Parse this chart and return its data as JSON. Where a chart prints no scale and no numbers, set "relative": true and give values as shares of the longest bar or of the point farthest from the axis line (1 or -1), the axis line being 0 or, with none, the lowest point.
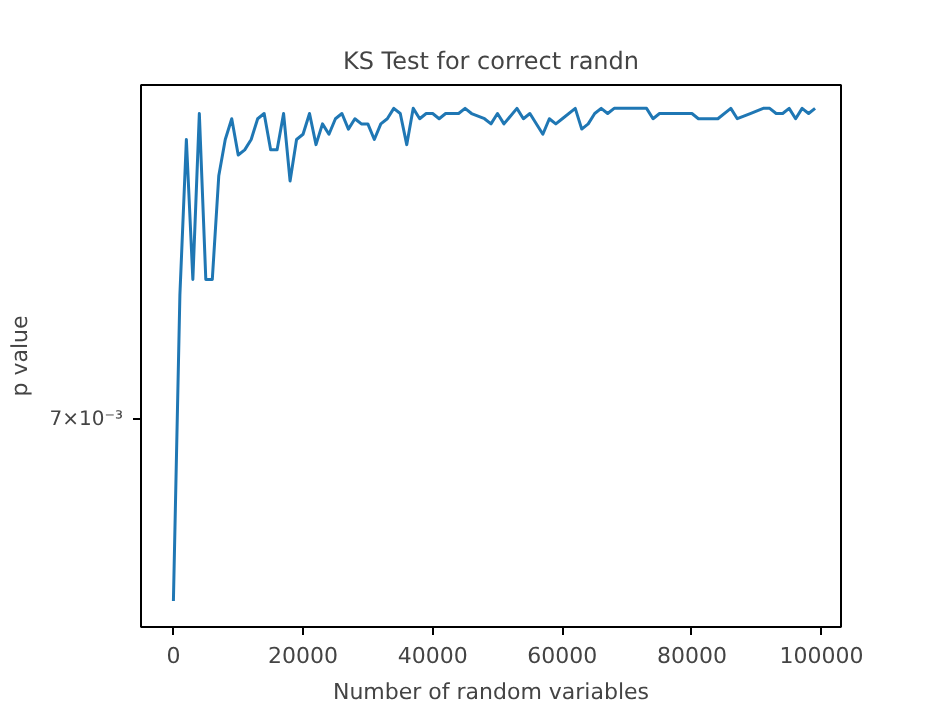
{
  "chart_data": {
    "type": "line",
    "title": "KS Test for correct randn",
    "xlabel": "Number of random variables",
    "ylabel": "p value",
    "relative": true,
    "grid": false,
    "annotations": [
      "7×10⁻³"
    ],
    "xlim": [
      -5000,
      103000
    ],
    "xticks": [
      0,
      20000,
      40000,
      60000,
      80000,
      100000
    ],
    "x": [
      0,
      1000,
      2000,
      3000,
      4000,
      5000,
      6000,
      7000,
      8000,
      9000,
      10000,
      11000,
      12000,
      13000,
      14000,
      15000,
      16000,
      17000,
      18000,
      19000,
      20000,
      21000,
      22000,
      23000,
      24000,
      25000,
      26000,
      27000,
      28000,
      29000,
      30000,
      31000,
      32000,
      33000,
      34000,
      35000,
      36000,
      37000,
      38000,
      39000,
      40000,
      41000,
      42000,
      43000,
      44000,
      45000,
      46000,
      48000,
      49000,
      50000,
      51000,
      53000,
      54000,
      55000,
      57000,
      58000,
      59000,
      60000,
      62000,
      63000,
      64000,
      65000,
      66000,
      67000,
      68000,
      69000,
      71000,
      73000,
      74000,
      75000,
      77000,
      78000,
      80000,
      81000,
      83000,
      84000,
      86000,
      87000,
      89000,
      91000,
      92000,
      93000,
      94000,
      95000,
      96000,
      97000,
      98000,
      99000
    ],
    "series": [
      {
        "color": "#1f77b4",
        "values": [
          0.05,
          0.64,
          0.94,
          0.67,
          0.99,
          0.67,
          0.67,
          0.87,
          0.94,
          0.98,
          0.91,
          0.92,
          0.94,
          0.98,
          0.99,
          0.92,
          0.92,
          0.99,
          0.86,
          0.94,
          0.95,
          0.99,
          0.93,
          0.97,
          0.95,
          0.98,
          0.99,
          0.96,
          0.98,
          0.97,
          0.97,
          0.94,
          0.97,
          0.98,
          1.0,
          0.99,
          0.93,
          1.0,
          0.98,
          0.99,
          0.99,
          0.98,
          0.99,
          0.99,
          0.99,
          1.0,
          0.99,
          0.98,
          0.97,
          0.99,
          0.97,
          1.0,
          0.98,
          0.99,
          0.95,
          0.98,
          0.97,
          0.98,
          1.0,
          0.96,
          0.97,
          0.99,
          1.0,
          0.99,
          1.0,
          1.0,
          1.0,
          1.0,
          0.98,
          0.99,
          0.99,
          0.99,
          0.99,
          0.98,
          0.98,
          0.98,
          1.0,
          0.98,
          0.99,
          1.0,
          1.0,
          0.99,
          0.99,
          1.0,
          0.98,
          1.0,
          0.99,
          1.0
        ]
      }
    ]
  }
}
